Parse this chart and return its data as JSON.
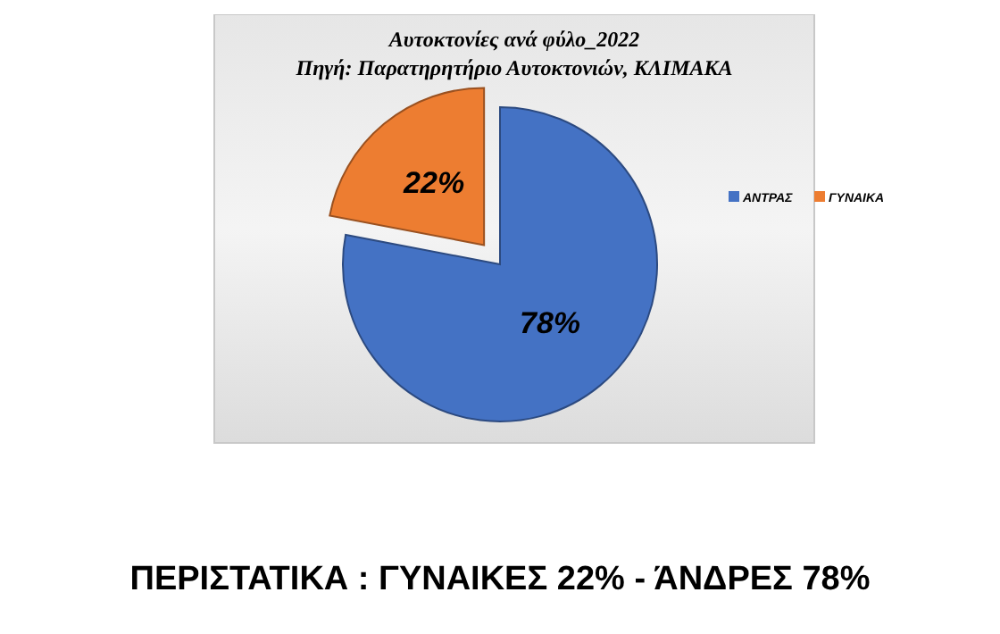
{
  "chart_data": {
    "type": "pie",
    "title": "Αυτοκτονίες ανά φύλο_2022",
    "subtitle": "Πηγή: Παρατηρητήριο Αυτοκτονιών, ΚΛΙΜΑΚΑ",
    "categories": [
      "ΑΝΤΡΑΣ",
      "ΓΥΝΑΙΚΑ"
    ],
    "values": [
      78,
      22
    ],
    "colors": [
      "#4472c4",
      "#ed7d31"
    ],
    "value_labels": [
      "78%",
      "22%"
    ],
    "legend": "right",
    "annotations": [
      "ΠΕΡΙΣΤΑΤΙΚΑ : ΓΥΝΑΙΚΕΣ 22% - ΆΝΔΡΕΣ 78%"
    ]
  }
}
